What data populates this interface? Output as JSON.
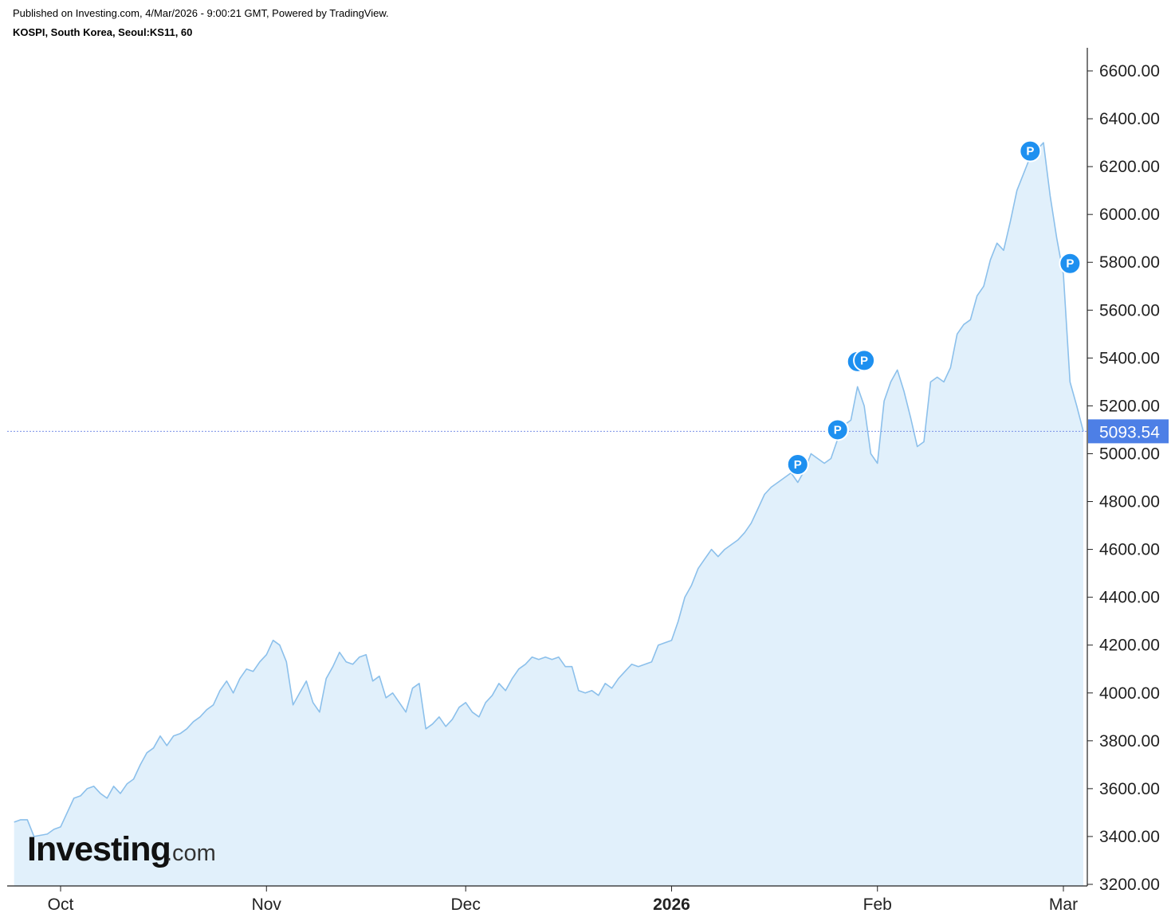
{
  "header": {
    "published": "Published on Investing.com, 4/Mar/2026 - 9:00:21 GMT, Powered by TradingView.",
    "title": "KOSPI, South Korea, Seoul:KS11, 60"
  },
  "logo": {
    "main": "Investing",
    "suffix": ".com"
  },
  "colors": {
    "line": "#8cc0eb",
    "fill": "#e1f0fb",
    "marker": "#1e90f0",
    "last_label_bg": "#4d7fe6",
    "price_line": "#7a90e8"
  },
  "chart_data": {
    "type": "area",
    "ylim": [
      3200,
      6700
    ],
    "y_ticks": [
      "3200.00",
      "3400.00",
      "3600.00",
      "3800.00",
      "4000.00",
      "4200.00",
      "4400.00",
      "4600.00",
      "4800.00",
      "5000.00",
      "5200.00",
      "5400.00",
      "5600.00",
      "5800.00",
      "6000.00",
      "6200.00",
      "6400.00",
      "6600.00"
    ],
    "x_ticks": [
      {
        "label": "Oct",
        "date": "2025-10-01",
        "bold": false
      },
      {
        "label": "Nov",
        "date": "2025-11-01",
        "bold": false
      },
      {
        "label": "Dec",
        "date": "2025-12-01",
        "bold": false
      },
      {
        "label": "2026",
        "date": "2026-01-01",
        "bold": true
      },
      {
        "label": "Feb",
        "date": "2026-02-01",
        "bold": false
      },
      {
        "label": "Mar",
        "date": "2026-03-01",
        "bold": false
      }
    ],
    "last_value": 5093.54,
    "last_label": "5093.54",
    "series": [
      {
        "points": [
          [
            "2025-09-24",
            3460
          ],
          [
            "2025-09-25",
            3470
          ],
          [
            "2025-09-26",
            3470
          ],
          [
            "2025-09-27",
            3400
          ],
          [
            "2025-09-29",
            3410
          ],
          [
            "2025-09-30",
            3430
          ],
          [
            "2025-10-01",
            3440
          ],
          [
            "2025-10-02",
            3500
          ],
          [
            "2025-10-03",
            3560
          ],
          [
            "2025-10-04",
            3570
          ],
          [
            "2025-10-05",
            3600
          ],
          [
            "2025-10-06",
            3610
          ],
          [
            "2025-10-07",
            3580
          ],
          [
            "2025-10-08",
            3560
          ],
          [
            "2025-10-09",
            3610
          ],
          [
            "2025-10-10",
            3580
          ],
          [
            "2025-10-11",
            3620
          ],
          [
            "2025-10-12",
            3640
          ],
          [
            "2025-10-13",
            3700
          ],
          [
            "2025-10-14",
            3750
          ],
          [
            "2025-10-15",
            3770
          ],
          [
            "2025-10-16",
            3820
          ],
          [
            "2025-10-17",
            3780
          ],
          [
            "2025-10-18",
            3820
          ],
          [
            "2025-10-19",
            3830
          ],
          [
            "2025-10-20",
            3850
          ],
          [
            "2025-10-21",
            3880
          ],
          [
            "2025-10-22",
            3900
          ],
          [
            "2025-10-23",
            3930
          ],
          [
            "2025-10-24",
            3950
          ],
          [
            "2025-10-25",
            4010
          ],
          [
            "2025-10-26",
            4050
          ],
          [
            "2025-10-27",
            4000
          ],
          [
            "2025-10-28",
            4060
          ],
          [
            "2025-10-29",
            4100
          ],
          [
            "2025-10-30",
            4090
          ],
          [
            "2025-10-31",
            4130
          ],
          [
            "2025-11-01",
            4160
          ],
          [
            "2025-11-02",
            4220
          ],
          [
            "2025-11-03",
            4200
          ],
          [
            "2025-11-04",
            4130
          ],
          [
            "2025-11-05",
            3950
          ],
          [
            "2025-11-06",
            4000
          ],
          [
            "2025-11-07",
            4050
          ],
          [
            "2025-11-08",
            3960
          ],
          [
            "2025-11-09",
            3920
          ],
          [
            "2025-11-10",
            4060
          ],
          [
            "2025-11-11",
            4110
          ],
          [
            "2025-11-12",
            4170
          ],
          [
            "2025-11-13",
            4130
          ],
          [
            "2025-11-14",
            4120
          ],
          [
            "2025-11-15",
            4150
          ],
          [
            "2025-11-16",
            4160
          ],
          [
            "2025-11-17",
            4050
          ],
          [
            "2025-11-18",
            4070
          ],
          [
            "2025-11-19",
            3980
          ],
          [
            "2025-11-20",
            4000
          ],
          [
            "2025-11-21",
            3960
          ],
          [
            "2025-11-22",
            3920
          ],
          [
            "2025-11-23",
            4020
          ],
          [
            "2025-11-24",
            4040
          ],
          [
            "2025-11-25",
            3850
          ],
          [
            "2025-11-26",
            3870
          ],
          [
            "2025-11-27",
            3900
          ],
          [
            "2025-11-28",
            3860
          ],
          [
            "2025-11-29",
            3890
          ],
          [
            "2025-11-30",
            3940
          ],
          [
            "2025-12-01",
            3960
          ],
          [
            "2025-12-02",
            3920
          ],
          [
            "2025-12-03",
            3900
          ],
          [
            "2025-12-04",
            3960
          ],
          [
            "2025-12-05",
            3990
          ],
          [
            "2025-12-06",
            4040
          ],
          [
            "2025-12-07",
            4010
          ],
          [
            "2025-12-08",
            4060
          ],
          [
            "2025-12-09",
            4100
          ],
          [
            "2025-12-10",
            4120
          ],
          [
            "2025-12-11",
            4150
          ],
          [
            "2025-12-12",
            4140
          ],
          [
            "2025-12-13",
            4150
          ],
          [
            "2025-12-14",
            4140
          ],
          [
            "2025-12-15",
            4150
          ],
          [
            "2025-12-16",
            4110
          ],
          [
            "2025-12-17",
            4110
          ],
          [
            "2025-12-18",
            4010
          ],
          [
            "2025-12-19",
            4000
          ],
          [
            "2025-12-20",
            4010
          ],
          [
            "2025-12-21",
            3990
          ],
          [
            "2025-12-22",
            4040
          ],
          [
            "2025-12-23",
            4020
          ],
          [
            "2025-12-24",
            4060
          ],
          [
            "2025-12-25",
            4090
          ],
          [
            "2025-12-26",
            4120
          ],
          [
            "2025-12-27",
            4110
          ],
          [
            "2025-12-28",
            4120
          ],
          [
            "2025-12-29",
            4130
          ],
          [
            "2025-12-30",
            4200
          ],
          [
            "2025-12-31",
            4210
          ],
          [
            "2026-01-01",
            4220
          ],
          [
            "2026-01-02",
            4300
          ],
          [
            "2026-01-03",
            4400
          ],
          [
            "2026-01-04",
            4450
          ],
          [
            "2026-01-05",
            4520
          ],
          [
            "2026-01-06",
            4560
          ],
          [
            "2026-01-07",
            4600
          ],
          [
            "2026-01-08",
            4570
          ],
          [
            "2026-01-09",
            4600
          ],
          [
            "2026-01-10",
            4620
          ],
          [
            "2026-01-11",
            4640
          ],
          [
            "2026-01-12",
            4670
          ],
          [
            "2026-01-13",
            4710
          ],
          [
            "2026-01-14",
            4770
          ],
          [
            "2026-01-15",
            4830
          ],
          [
            "2026-01-16",
            4860
          ],
          [
            "2026-01-17",
            4880
          ],
          [
            "2026-01-18",
            4900
          ],
          [
            "2026-01-19",
            4920
          ],
          [
            "2026-01-20",
            4880
          ],
          [
            "2026-01-21",
            4930
          ],
          [
            "2026-01-22",
            5000
          ],
          [
            "2026-01-23",
            4980
          ],
          [
            "2026-01-24",
            4960
          ],
          [
            "2026-01-25",
            4980
          ],
          [
            "2026-01-26",
            5060
          ],
          [
            "2026-01-27",
            5120
          ],
          [
            "2026-01-28",
            5140
          ],
          [
            "2026-01-29",
            5280
          ],
          [
            "2026-01-30",
            5200
          ],
          [
            "2026-01-31",
            5000
          ],
          [
            "2026-02-01",
            4960
          ],
          [
            "2026-02-02",
            5220
          ],
          [
            "2026-02-03",
            5300
          ],
          [
            "2026-02-04",
            5350
          ],
          [
            "2026-02-05",
            5260
          ],
          [
            "2026-02-06",
            5150
          ],
          [
            "2026-02-07",
            5030
          ],
          [
            "2026-02-08",
            5050
          ],
          [
            "2026-02-09",
            5300
          ],
          [
            "2026-02-10",
            5320
          ],
          [
            "2026-02-11",
            5300
          ],
          [
            "2026-02-12",
            5360
          ],
          [
            "2026-02-13",
            5500
          ],
          [
            "2026-02-14",
            5540
          ],
          [
            "2026-02-15",
            5560
          ],
          [
            "2026-02-16",
            5660
          ],
          [
            "2026-02-17",
            5700
          ],
          [
            "2026-02-18",
            5810
          ],
          [
            "2026-02-19",
            5880
          ],
          [
            "2026-02-20",
            5850
          ],
          [
            "2026-02-21",
            5970
          ],
          [
            "2026-02-22",
            6100
          ],
          [
            "2026-02-23",
            6170
          ],
          [
            "2026-02-24",
            6240
          ],
          [
            "2026-02-25",
            6270
          ],
          [
            "2026-02-26",
            6300
          ],
          [
            "2026-02-27",
            6080
          ],
          [
            "2026-02-28",
            5900
          ],
          [
            "2026-03-01",
            5750
          ],
          [
            "2026-03-02",
            5300
          ],
          [
            "2026-03-03",
            5200
          ],
          [
            "2026-03-04",
            5093.54
          ]
        ]
      }
    ],
    "markers": [
      {
        "label": "P",
        "date": "2026-01-20",
        "value": 4955
      },
      {
        "label": "P",
        "date": "2026-01-26",
        "value": 5100
      },
      {
        "label": "P",
        "date": "2026-01-29",
        "value": 5385
      },
      {
        "label": "P",
        "date": "2026-01-30",
        "value": 5390
      },
      {
        "label": "P",
        "date": "2026-02-24",
        "value": 6265
      },
      {
        "label": "P",
        "date": "2026-03-02",
        "value": 5795
      }
    ]
  }
}
